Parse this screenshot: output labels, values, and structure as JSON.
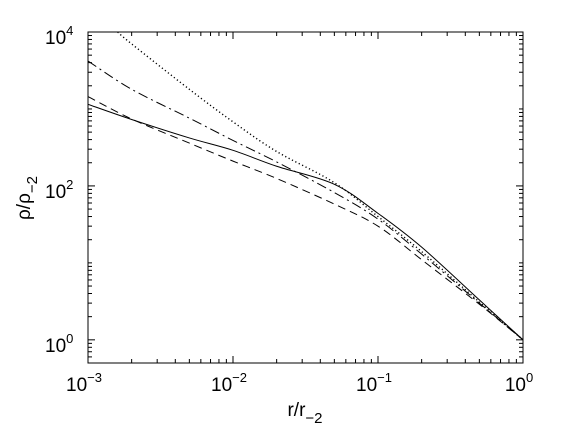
{
  "chart_data": {
    "type": "line",
    "xscale": "log",
    "yscale": "log",
    "xlim": [
      0.001,
      1
    ],
    "ylim": [
      0.5,
      10000
    ],
    "grid": false,
    "legend": "none",
    "xlabel": {
      "base": "r/r",
      "sub": "−2"
    },
    "ylabel": {
      "base": "ρ/ρ",
      "sub": "−2"
    },
    "xticks": [
      {
        "value": 0.001,
        "base": "10",
        "exp": "−3"
      },
      {
        "value": 0.01,
        "base": "10",
        "exp": "−2"
      },
      {
        "value": 0.1,
        "base": "10",
        "exp": "−1"
      },
      {
        "value": 1,
        "base": "10",
        "exp": "0"
      }
    ],
    "yticks": [
      {
        "value": 1,
        "base": "10",
        "exp": "0"
      },
      {
        "value": 100,
        "base": "10",
        "exp": "2"
      },
      {
        "value": 10000,
        "base": "10",
        "exp": "4"
      }
    ],
    "series": [
      {
        "style": "solid",
        "x": [
          0.001,
          0.002,
          0.005,
          0.01,
          0.02,
          0.05,
          0.1,
          0.2,
          0.5,
          1.0
        ],
        "y": [
          1150,
          730,
          420,
          290,
          180,
          105,
          44,
          16,
          3.3,
          1.0
        ]
      },
      {
        "style": "dotted",
        "x": [
          0.0016,
          0.002,
          0.005,
          0.01,
          0.02,
          0.05,
          0.1,
          0.2,
          0.5,
          1.0
        ],
        "y": [
          10000,
          7000,
          1800,
          680,
          280,
          110,
          40,
          14,
          3.1,
          1.0
        ]
      },
      {
        "style": "dashed",
        "x": [
          0.001,
          0.002,
          0.005,
          0.01,
          0.02,
          0.05,
          0.1,
          0.2,
          0.5,
          1.0
        ],
        "y": [
          1450,
          740,
          360,
          210,
          125,
          58,
          30,
          11,
          2.9,
          1.0
        ]
      },
      {
        "style": "dashdot",
        "x": [
          0.001,
          0.002,
          0.005,
          0.01,
          0.02,
          0.05,
          0.1,
          0.2,
          0.5,
          1.0
        ],
        "y": [
          4200,
          1800,
          760,
          390,
          205,
          82,
          37,
          13,
          3.0,
          1.0
        ]
      }
    ]
  }
}
